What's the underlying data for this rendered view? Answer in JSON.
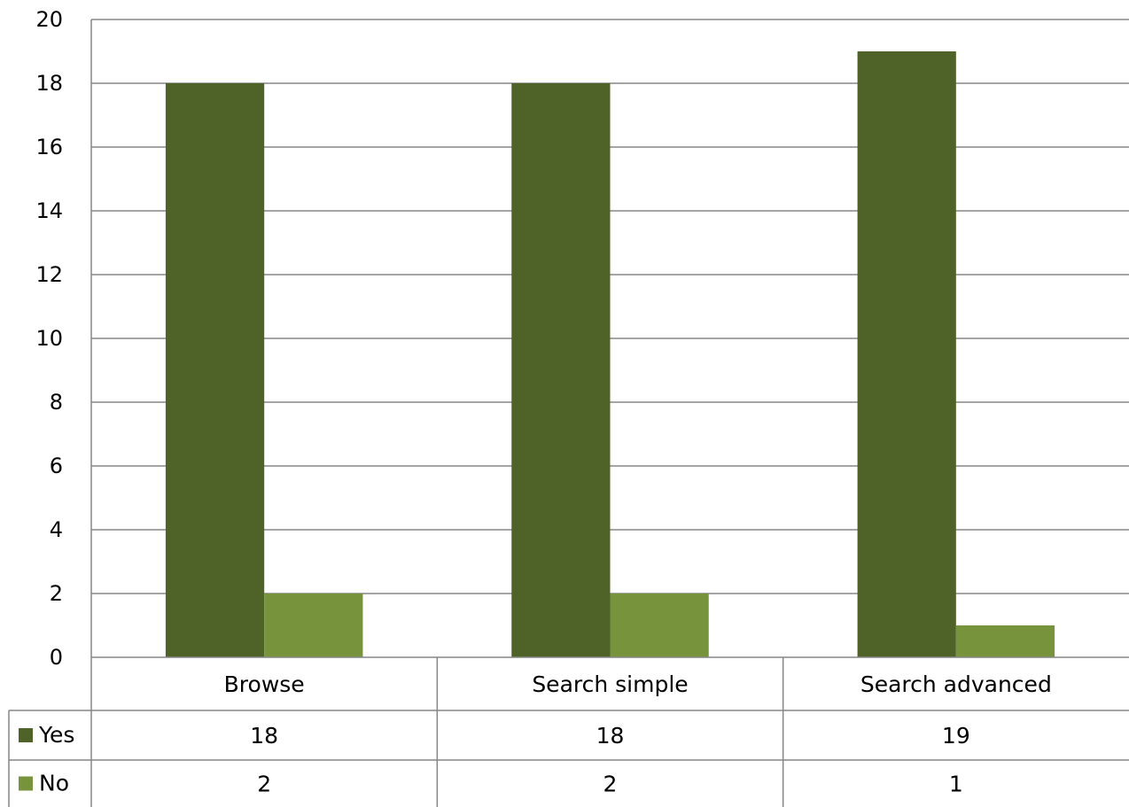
{
  "chart_data": {
    "type": "bar",
    "title": "",
    "xlabel": "",
    "ylabel": "",
    "categories": [
      "Browse",
      "Search simple",
      "Search advanced"
    ],
    "series": [
      {
        "name": "Yes",
        "values": [
          18,
          18,
          19
        ],
        "color": "#4f6228"
      },
      {
        "name": "No",
        "values": [
          2,
          2,
          1
        ],
        "color": "#77933c"
      }
    ],
    "ylim": [
      0,
      20
    ],
    "yticks": [
      0,
      2,
      4,
      6,
      8,
      10,
      12,
      14,
      16,
      18,
      20
    ],
    "grid": true,
    "legend": "data-table"
  },
  "colors": {
    "gridline": "#868686",
    "axis": "#868686"
  }
}
